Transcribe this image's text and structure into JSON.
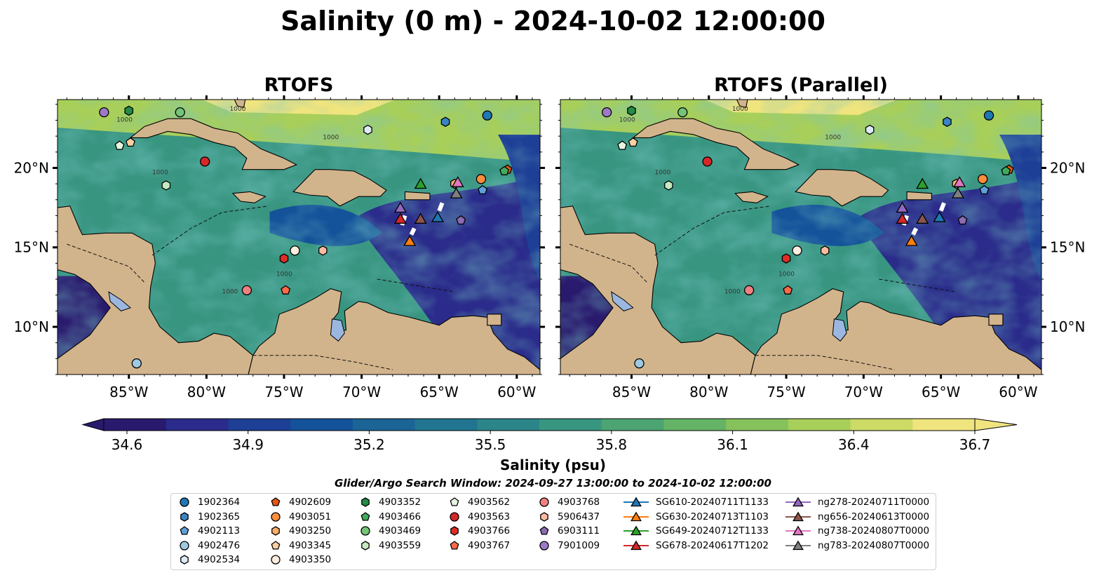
{
  "title": "Salinity (0 m) - 2024-10-02 12:00:00",
  "panels": [
    {
      "title": "RTOFS"
    },
    {
      "title": "RTOFS (Parallel)"
    }
  ],
  "axes": {
    "lon_ticks": [
      "85°W",
      "80°W",
      "75°W",
      "70°W",
      "65°W",
      "60°W"
    ],
    "lat_ticks": [
      "20°N",
      "15°N",
      "10°N"
    ],
    "lon_values": [
      -85,
      -80,
      -75,
      -70,
      -65,
      -60
    ],
    "lat_values": [
      20,
      15,
      10
    ],
    "lon_range": [
      -89.6,
      -58.5
    ],
    "lat_range": [
      7.0,
      24.3
    ]
  },
  "contour_label": "1000",
  "colorbar": {
    "label": "Salinity (psu)",
    "ticks": [
      "34.6",
      "34.9",
      "35.2",
      "35.5",
      "35.8",
      "36.1",
      "36.4",
      "36.7"
    ],
    "range": [
      34.6,
      36.7
    ],
    "colormap": "haline",
    "colors": [
      "#2a1a6e",
      "#2a2b8a",
      "#1e3f96",
      "#14529a",
      "#1a6596",
      "#227590",
      "#2b8589",
      "#389580",
      "#4ca473",
      "#65b366",
      "#86c25c",
      "#a8cf5a",
      "#cdda66",
      "#efe47e"
    ]
  },
  "search_window": "Glider/Argo Search Window: 2024-09-27 13:00:00 to 2024-10-02 12:00:00",
  "legend": {
    "columns": [
      [
        {
          "label": "1902364",
          "marker": "circle",
          "color": "#1f77b4"
        },
        {
          "label": "1902365",
          "marker": "hexagon",
          "color": "#3b84c4"
        },
        {
          "label": "4902113",
          "marker": "pentagon",
          "color": "#5fa0d8"
        },
        {
          "label": "4902476",
          "marker": "circle",
          "color": "#9ecae1"
        },
        {
          "label": "4902534",
          "marker": "hexagon",
          "color": "#deebf7"
        }
      ],
      [
        {
          "label": "4902609",
          "marker": "pentagon",
          "color": "#e6550d"
        },
        {
          "label": "4903051",
          "marker": "circle",
          "color": "#fd8d3c"
        },
        {
          "label": "4903250",
          "marker": "hexagon",
          "color": "#fdae6b"
        },
        {
          "label": "4903345",
          "marker": "pentagon",
          "color": "#fdd0a2"
        },
        {
          "label": "4903350",
          "marker": "circle",
          "color": "#feedde"
        }
      ],
      [
        {
          "label": "4903352",
          "marker": "hexagon",
          "color": "#238b45"
        },
        {
          "label": "4903466",
          "marker": "pentagon",
          "color": "#41ab5d"
        },
        {
          "label": "4903469",
          "marker": "circle",
          "color": "#74c476"
        },
        {
          "label": "4903559",
          "marker": "hexagon",
          "color": "#c7e9c0"
        }
      ],
      [
        {
          "label": "4903562",
          "marker": "pentagon",
          "color": "#e5f5e0"
        },
        {
          "label": "4903563",
          "marker": "circle",
          "color": "#d62728"
        },
        {
          "label": "4903766",
          "marker": "hexagon",
          "color": "#de2d26"
        },
        {
          "label": "4903767",
          "marker": "pentagon",
          "color": "#fb6a4a"
        }
      ],
      [
        {
          "label": "4903768",
          "marker": "circle",
          "color": "#f08080"
        },
        {
          "label": "5906437",
          "marker": "hexagon",
          "color": "#fcbba1"
        },
        {
          "label": "6903111",
          "marker": "pentagon",
          "color": "#8c6bb1"
        },
        {
          "label": "7901009",
          "marker": "circle",
          "color": "#9e79c8"
        }
      ],
      [
        {
          "label": "SG610-20240711T1133",
          "marker": "triangle",
          "color": "#1f77b4"
        },
        {
          "label": "SG630-20240713T1103",
          "marker": "triangle",
          "color": "#ff7f0e"
        },
        {
          "label": "SG649-20240712T1133",
          "marker": "triangle",
          "color": "#2ca02c"
        },
        {
          "label": "SG678-20240617T1202",
          "marker": "triangle",
          "color": "#d62728"
        }
      ],
      [
        {
          "label": "ng278-20240711T0000",
          "marker": "triangle",
          "color": "#9467bd"
        },
        {
          "label": "ng656-20240613T0000",
          "marker": "triangle",
          "color": "#8c564b"
        },
        {
          "label": "ng738-20240807T0000",
          "marker": "triangle",
          "color": "#e377c2"
        },
        {
          "label": "ng783-20240807T0000",
          "marker": "triangle",
          "color": "#7f7f7f"
        }
      ]
    ]
  },
  "observations": [
    {
      "id": "1902364",
      "lon": -61.9,
      "lat": 23.3
    },
    {
      "id": "1902365",
      "lon": -64.6,
      "lat": 22.9
    },
    {
      "id": "4902113",
      "lon": -62.2,
      "lat": 18.6
    },
    {
      "id": "4902476",
      "lon": -84.5,
      "lat": 7.7
    },
    {
      "id": "4902534",
      "lon": -69.6,
      "lat": 22.4
    },
    {
      "id": "4902609",
      "lon": -60.6,
      "lat": 19.9
    },
    {
      "id": "4903051",
      "lon": -62.3,
      "lat": 19.3
    },
    {
      "id": "4903250",
      "lon": -64.0,
      "lat": 19.0
    },
    {
      "id": "4903345",
      "lon": -84.9,
      "lat": 21.6
    },
    {
      "id": "4903350",
      "lon": -74.3,
      "lat": 14.8
    },
    {
      "id": "4903352",
      "lon": -85.0,
      "lat": 23.6
    },
    {
      "id": "4903466",
      "lon": -60.8,
      "lat": 19.8
    },
    {
      "id": "4903469",
      "lon": -81.7,
      "lat": 23.5
    },
    {
      "id": "4903559",
      "lon": -82.6,
      "lat": 18.9
    },
    {
      "id": "4903562",
      "lon": -85.6,
      "lat": 21.4
    },
    {
      "id": "4903563",
      "lon": -80.1,
      "lat": 20.4
    },
    {
      "id": "4903766",
      "lon": -75.0,
      "lat": 14.3
    },
    {
      "id": "4903767",
      "lon": -74.9,
      "lat": 12.3
    },
    {
      "id": "4903768",
      "lon": -77.4,
      "lat": 12.3
    },
    {
      "id": "5906437",
      "lon": -72.5,
      "lat": 14.8
    },
    {
      "id": "6903111",
      "lon": -63.6,
      "lat": 16.7
    },
    {
      "id": "7901009",
      "lon": -86.6,
      "lat": 23.5
    },
    {
      "id": "SG610-20240711T1133",
      "lon": -65.1,
      "lat": 16.9
    },
    {
      "id": "SG630-20240713T1103",
      "lon": -66.9,
      "lat": 15.4
    },
    {
      "id": "SG649-20240712T1133",
      "lon": -66.2,
      "lat": 19.0
    },
    {
      "id": "SG678-20240617T1202",
      "lon": -67.5,
      "lat": 16.8
    },
    {
      "id": "ng278-20240711T0000",
      "lon": -67.5,
      "lat": 17.5
    },
    {
      "id": "ng656-20240613T0000",
      "lon": -66.2,
      "lat": 16.8
    },
    {
      "id": "ng738-20240807T0000",
      "lon": -63.8,
      "lat": 19.1
    },
    {
      "id": "ng783-20240807T0000",
      "lon": -63.9,
      "lat": 18.4
    }
  ]
}
